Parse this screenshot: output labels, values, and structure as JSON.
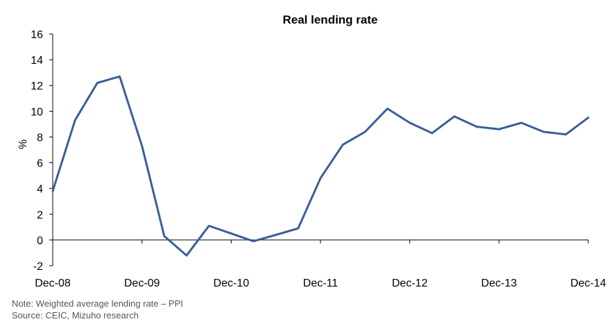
{
  "chart_data": {
    "type": "line",
    "title": "Real lending rate",
    "xlabel": "",
    "ylabel": "%",
    "ylim": [
      -2,
      16
    ],
    "yticks": [
      -2,
      0,
      2,
      4,
      6,
      8,
      10,
      12,
      14,
      16
    ],
    "xtick_labels": [
      "Dec-08",
      "Dec-09",
      "Dec-10",
      "Dec-11",
      "Dec-12",
      "Dec-13",
      "Dec-14"
    ],
    "x_unit": "quarter",
    "x": [
      "Dec-08",
      "Mar-09",
      "Jun-09",
      "Sep-09",
      "Dec-09",
      "Mar-10",
      "Jun-10",
      "Sep-10",
      "Dec-10",
      "Mar-11",
      "Jun-11",
      "Sep-11",
      "Dec-11",
      "Mar-12",
      "Jun-12",
      "Sep-12",
      "Dec-12",
      "Mar-13",
      "Jun-13",
      "Sep-13",
      "Dec-13",
      "Mar-14",
      "Jun-14",
      "Sep-14",
      "Dec-14"
    ],
    "series": [
      {
        "name": "",
        "color": "#3a5f96",
        "values": [
          3.8,
          9.3,
          12.2,
          12.7,
          7.3,
          0.3,
          -1.2,
          1.1,
          0.5,
          -0.1,
          0.4,
          0.9,
          4.8,
          7.4,
          8.4,
          10.2,
          9.1,
          8.3,
          9.6,
          8.8,
          8.6,
          9.1,
          8.4,
          8.2,
          9.5
        ]
      }
    ],
    "grid": false,
    "legend": "none"
  },
  "notes": {
    "note": "Note: Weighted average lending rate – PPI",
    "source": "Source: CEIC, Mizuho research"
  }
}
